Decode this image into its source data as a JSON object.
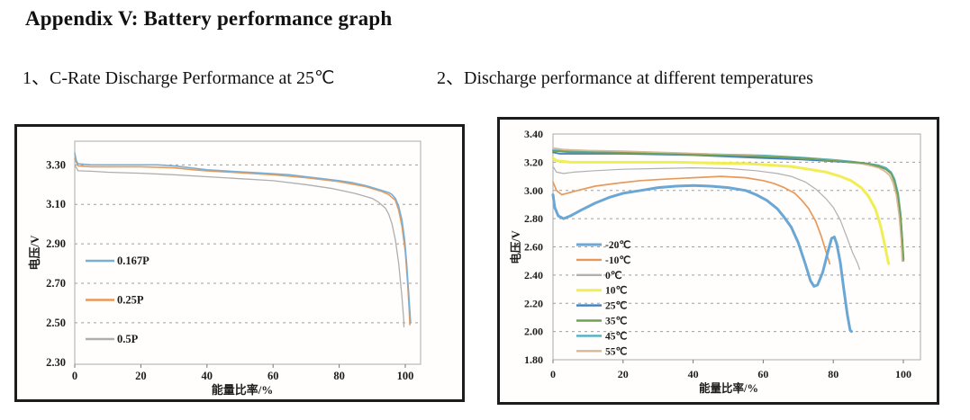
{
  "page": {
    "title": "Appendix V: Battery performance graph"
  },
  "sections": [
    {
      "label": "1、C-Rate Discharge Performance at 25℃"
    },
    {
      "label": "2、Discharge performance at different temperatures"
    }
  ],
  "chart_data": [
    {
      "type": "line",
      "title": "C-Rate Discharge Performance at 25℃",
      "xlabel": "能量比率/%",
      "ylabel": "电压/V",
      "xlim": [
        0,
        104.6
      ],
      "ylim": [
        2.29,
        3.42
      ],
      "xticks": [
        "0",
        "20",
        "40",
        "60",
        "80",
        "100"
      ],
      "yticks": [
        "3.30",
        "3.10",
        "2.90",
        "2.70",
        "2.50",
        "2.30"
      ],
      "grid": "horizontal-dashed",
      "legend_position": "inside-left",
      "series": [
        {
          "name": "0.167P",
          "color": "#7aafd4",
          "width": 1.6,
          "points": [
            [
              0,
              3.36
            ],
            [
              0.5,
              3.32
            ],
            [
              1,
              3.305
            ],
            [
              5,
              3.3
            ],
            [
              10,
              3.3
            ],
            [
              15,
              3.3
            ],
            [
              20,
              3.3
            ],
            [
              25,
              3.3
            ],
            [
              30,
              3.295
            ],
            [
              35,
              3.285
            ],
            [
              40,
              3.275
            ],
            [
              45,
              3.27
            ],
            [
              50,
              3.265
            ],
            [
              55,
              3.26
            ],
            [
              60,
              3.255
            ],
            [
              65,
              3.25
            ],
            [
              70,
              3.24
            ],
            [
              75,
              3.23
            ],
            [
              80,
              3.22
            ],
            [
              84,
              3.21
            ],
            [
              88,
              3.195
            ],
            [
              91,
              3.18
            ],
            [
              93,
              3.17
            ],
            [
              95,
              3.16
            ],
            [
              96,
              3.15
            ],
            [
              97,
              3.13
            ],
            [
              98,
              3.09
            ],
            [
              99,
              3.02
            ],
            [
              99.8,
              2.92
            ],
            [
              100.4,
              2.8
            ],
            [
              100.9,
              2.68
            ],
            [
              101.3,
              2.58
            ],
            [
              101.6,
              2.5
            ]
          ]
        },
        {
          "name": "0.25P",
          "color": "#e8995a",
          "width": 1.6,
          "points": [
            [
              0,
              3.33
            ],
            [
              1,
              3.295
            ],
            [
              5,
              3.29
            ],
            [
              10,
              3.29
            ],
            [
              20,
              3.29
            ],
            [
              30,
              3.285
            ],
            [
              36,
              3.275
            ],
            [
              40,
              3.27
            ],
            [
              50,
              3.26
            ],
            [
              60,
              3.25
            ],
            [
              70,
              3.235
            ],
            [
              80,
              3.215
            ],
            [
              88,
              3.19
            ],
            [
              93,
              3.165
            ],
            [
              95,
              3.15
            ],
            [
              97,
              3.12
            ],
            [
              98,
              3.07
            ],
            [
              99,
              2.99
            ],
            [
              100,
              2.86
            ],
            [
              100.7,
              2.7
            ],
            [
              101.2,
              2.56
            ],
            [
              101.4,
              2.49
            ]
          ]
        },
        {
          "name": "0.5P",
          "color": "#aeaeae",
          "width": 1.3,
          "points": [
            [
              0,
              3.3
            ],
            [
              1,
              3.27
            ],
            [
              5,
              3.268
            ],
            [
              10,
              3.263
            ],
            [
              20,
              3.258
            ],
            [
              30,
              3.25
            ],
            [
              40,
              3.24
            ],
            [
              50,
              3.23
            ],
            [
              60,
              3.22
            ],
            [
              70,
              3.2
            ],
            [
              78,
              3.18
            ],
            [
              85,
              3.155
            ],
            [
              90,
              3.13
            ],
            [
              92,
              3.11
            ],
            [
              94,
              3.08
            ],
            [
              95,
              3.05
            ],
            [
              96,
              3.0
            ],
            [
              97,
              2.92
            ],
            [
              98,
              2.8
            ],
            [
              99,
              2.63
            ],
            [
              99.5,
              2.52
            ],
            [
              99.6,
              2.48
            ]
          ]
        }
      ]
    },
    {
      "type": "line",
      "title": "Discharge performance at different temperatures",
      "xlabel": "能量比率/%",
      "ylabel": "电压/V",
      "xlim": [
        0,
        104.9
      ],
      "ylim": [
        1.8,
        3.4
      ],
      "xticks": [
        "0",
        "20",
        "40",
        "60",
        "80",
        "100"
      ],
      "yticks": [
        "3.40",
        "3.20",
        "3.00",
        "2.80",
        "2.60",
        "2.40",
        "2.20",
        "2.00",
        "1.80"
      ],
      "grid": "horizontal-dashed",
      "legend_position": "inside-left",
      "series": [
        {
          "name": "-20℃",
          "color": "#6aa7d4",
          "width": 3,
          "points": [
            [
              0,
              2.97
            ],
            [
              0.5,
              2.88
            ],
            [
              1.5,
              2.82
            ],
            [
              3,
              2.8
            ],
            [
              5,
              2.82
            ],
            [
              8,
              2.86
            ],
            [
              12,
              2.91
            ],
            [
              16,
              2.95
            ],
            [
              20,
              2.98
            ],
            [
              25,
              3.0
            ],
            [
              30,
              3.02
            ],
            [
              35,
              3.03
            ],
            [
              40,
              3.035
            ],
            [
              45,
              3.03
            ],
            [
              50,
              3.02
            ],
            [
              55,
              3.0
            ],
            [
              58,
              2.97
            ],
            [
              61,
              2.93
            ],
            [
              64,
              2.87
            ],
            [
              66,
              2.81
            ],
            [
              68,
              2.74
            ],
            [
              70,
              2.63
            ],
            [
              72,
              2.48
            ],
            [
              73.5,
              2.36
            ],
            [
              74.5,
              2.32
            ],
            [
              75.5,
              2.33
            ],
            [
              77,
              2.42
            ],
            [
              78.5,
              2.57
            ],
            [
              79.5,
              2.66
            ],
            [
              80.3,
              2.67
            ],
            [
              81,
              2.62
            ],
            [
              82,
              2.49
            ],
            [
              83,
              2.3
            ],
            [
              84,
              2.12
            ],
            [
              84.8,
              2.01
            ],
            [
              85.2,
              2.0
            ]
          ]
        },
        {
          "name": "-10℃",
          "color": "#e8995a",
          "width": 1.7,
          "points": [
            [
              0,
              3.06
            ],
            [
              1,
              3.0
            ],
            [
              2.5,
              2.97
            ],
            [
              4,
              2.98
            ],
            [
              7,
              3.0
            ],
            [
              12,
              3.03
            ],
            [
              18,
              3.05
            ],
            [
              25,
              3.07
            ],
            [
              32,
              3.08
            ],
            [
              40,
              3.09
            ],
            [
              48,
              3.1
            ],
            [
              55,
              3.09
            ],
            [
              60,
              3.07
            ],
            [
              63,
              3.05
            ],
            [
              66,
              3.02
            ],
            [
              69,
              2.98
            ],
            [
              71,
              2.93
            ],
            [
              73,
              2.87
            ],
            [
              75,
              2.78
            ],
            [
              76.5,
              2.68
            ],
            [
              78,
              2.56
            ],
            [
              79,
              2.48
            ]
          ]
        },
        {
          "name": "0℃",
          "color": "#b0b0b0",
          "width": 1.2,
          "points": [
            [
              0,
              3.17
            ],
            [
              1,
              3.13
            ],
            [
              3,
              3.12
            ],
            [
              6,
              3.13
            ],
            [
              12,
              3.14
            ],
            [
              20,
              3.15
            ],
            [
              30,
              3.155
            ],
            [
              40,
              3.16
            ],
            [
              50,
              3.155
            ],
            [
              58,
              3.14
            ],
            [
              64,
              3.12
            ],
            [
              68,
              3.1
            ],
            [
              72,
              3.06
            ],
            [
              75,
              3.01
            ],
            [
              78,
              2.94
            ],
            [
              80,
              2.88
            ],
            [
              82,
              2.79
            ],
            [
              84,
              2.66
            ],
            [
              85.5,
              2.56
            ],
            [
              87,
              2.48
            ],
            [
              87.5,
              2.44
            ]
          ]
        },
        {
          "name": "10℃",
          "color": "#f0ee54",
          "width": 3,
          "points": [
            [
              0,
              3.23
            ],
            [
              1,
              3.21
            ],
            [
              5,
              3.2
            ],
            [
              15,
              3.2
            ],
            [
              25,
              3.2
            ],
            [
              35,
              3.2
            ],
            [
              45,
              3.195
            ],
            [
              55,
              3.19
            ],
            [
              62,
              3.18
            ],
            [
              68,
              3.17
            ],
            [
              73,
              3.15
            ],
            [
              78,
              3.13
            ],
            [
              82,
              3.1
            ],
            [
              85,
              3.07
            ],
            [
              88,
              3.02
            ],
            [
              90,
              2.96
            ],
            [
              92,
              2.87
            ],
            [
              93.5,
              2.75
            ],
            [
              94.8,
              2.6
            ],
            [
              95.6,
              2.5
            ],
            [
              95.8,
              2.48
            ]
          ]
        },
        {
          "name": "25℃",
          "color": "#3f7fc1",
          "width": 1.8,
          "points": [
            [
              0,
              3.27
            ],
            [
              2,
              3.26
            ],
            [
              10,
              3.26
            ],
            [
              20,
              3.26
            ],
            [
              30,
              3.255
            ],
            [
              40,
              3.25
            ],
            [
              50,
              3.24
            ],
            [
              60,
              3.23
            ],
            [
              70,
              3.22
            ],
            [
              78,
              3.21
            ],
            [
              84,
              3.2
            ],
            [
              88,
              3.19
            ],
            [
              91,
              3.18
            ],
            [
              93,
              3.17
            ],
            [
              95,
              3.15
            ],
            [
              96.5,
              3.12
            ],
            [
              97.5,
              3.07
            ],
            [
              98.3,
              2.98
            ],
            [
              99,
              2.85
            ],
            [
              99.6,
              2.68
            ],
            [
              100,
              2.52
            ]
          ]
        },
        {
          "name": "35℃",
          "color": "#6fa153",
          "width": 1.8,
          "points": [
            [
              0,
              3.28
            ],
            [
              5,
              3.27
            ],
            [
              15,
              3.268
            ],
            [
              30,
              3.26
            ],
            [
              45,
              3.25
            ],
            [
              60,
              3.24
            ],
            [
              72,
              3.228
            ],
            [
              80,
              3.21
            ],
            [
              86,
              3.2
            ],
            [
              90,
              3.19
            ],
            [
              93,
              3.17
            ],
            [
              95,
              3.15
            ],
            [
              96.5,
              3.12
            ],
            [
              97.5,
              3.06
            ],
            [
              98.5,
              2.96
            ],
            [
              99.3,
              2.8
            ],
            [
              99.8,
              2.62
            ],
            [
              100.1,
              2.51
            ]
          ]
        },
        {
          "name": "45℃",
          "color": "#4fb0c4",
          "width": 1.8,
          "points": [
            [
              0,
              3.285
            ],
            [
              5,
              3.28
            ],
            [
              15,
              3.272
            ],
            [
              30,
              3.266
            ],
            [
              45,
              3.257
            ],
            [
              60,
              3.248
            ],
            [
              72,
              3.232
            ],
            [
              80,
              3.218
            ],
            [
              86,
              3.203
            ],
            [
              90,
              3.19
            ],
            [
              93,
              3.178
            ],
            [
              95,
              3.16
            ],
            [
              96.5,
              3.13
            ],
            [
              97.5,
              3.08
            ],
            [
              98.5,
              2.98
            ],
            [
              99.2,
              2.84
            ],
            [
              99.7,
              2.66
            ],
            [
              100,
              2.5
            ]
          ]
        },
        {
          "name": "55℃",
          "color": "#d9b897",
          "width": 1.8,
          "points": [
            [
              0,
              3.3
            ],
            [
              3,
              3.29
            ],
            [
              10,
              3.283
            ],
            [
              20,
              3.278
            ],
            [
              30,
              3.27
            ],
            [
              40,
              3.262
            ],
            [
              50,
              3.253
            ],
            [
              60,
              3.243
            ],
            [
              68,
              3.232
            ],
            [
              75,
              3.222
            ],
            [
              80,
              3.212
            ],
            [
              85,
              3.2
            ],
            [
              88,
              3.19
            ],
            [
              91,
              3.174
            ],
            [
              93,
              3.16
            ],
            [
              94.5,
              3.14
            ],
            [
              96,
              3.11
            ],
            [
              97,
              3.06
            ],
            [
              98,
              2.97
            ],
            [
              98.8,
              2.83
            ],
            [
              99.4,
              2.65
            ],
            [
              99.7,
              2.5
            ]
          ]
        }
      ]
    }
  ]
}
